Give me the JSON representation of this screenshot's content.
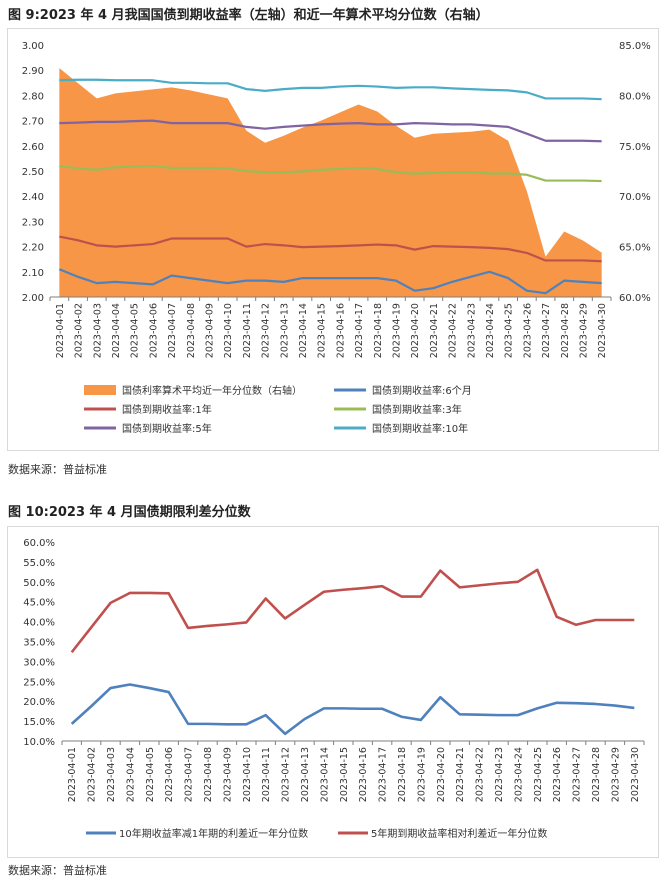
{
  "figure1": {
    "title": "图 9:2023 年 4 月我国国债到期收益率（左轴）和近一年算术平均分位数（右轴）",
    "source": "数据来源：普益标准"
  },
  "figure2": {
    "title": "图 10:2023 年 4 月国债期限利差分位数",
    "source": "数据来源：普益标准"
  },
  "chart_data": [
    {
      "type": "line",
      "title": "",
      "x": [
        "2023-04-01",
        "2023-04-02",
        "2023-04-03",
        "2023-04-04",
        "2023-04-05",
        "2023-04-06",
        "2023-04-07",
        "2023-04-08",
        "2023-04-09",
        "2023-04-10",
        "2023-04-11",
        "2023-04-12",
        "2023-04-13",
        "2023-04-14",
        "2023-04-15",
        "2023-04-16",
        "2023-04-17",
        "2023-04-18",
        "2023-04-19",
        "2023-04-20",
        "2023-04-21",
        "2023-04-22",
        "2023-04-23",
        "2023-04-24",
        "2023-04-25",
        "2023-04-26",
        "2023-04-27",
        "2023-04-28",
        "2023-04-29",
        "2023-04-30"
      ],
      "y_left": {
        "ylim": [
          2.0,
          3.0
        ],
        "ticks": [
          "2.00",
          "2.10",
          "2.20",
          "2.30",
          "2.40",
          "2.50",
          "2.60",
          "2.70",
          "2.80",
          "2.90",
          "3.00"
        ]
      },
      "y_right": {
        "ylim": [
          60,
          85
        ],
        "ticks": [
          "60.0%",
          "65.0%",
          "70.0%",
          "75.0%",
          "80.0%",
          "85.0%"
        ]
      },
      "grid": false,
      "legend_position": "bottom",
      "series": [
        {
          "name": "国债利率算术平均近一年分位数（右轴）",
          "kind": "area",
          "axis": "right",
          "color": "#F79646",
          "values": [
            82.7,
            81.2,
            79.7,
            80.2,
            80.4,
            80.6,
            80.8,
            80.5,
            80.1,
            79.7,
            76.5,
            75.3,
            76.0,
            76.8,
            77.5,
            78.3,
            79.1,
            78.4,
            77.0,
            75.8,
            76.2,
            76.3,
            76.4,
            76.6,
            75.5,
            70.5,
            64.0,
            66.5,
            65.6,
            64.4
          ]
        },
        {
          "name": "国债到期收益率:6个月",
          "kind": "line",
          "axis": "left",
          "color": "#4F81BD",
          "values": [
            2.11,
            2.08,
            2.055,
            2.06,
            2.055,
            2.05,
            2.085,
            2.075,
            2.065,
            2.055,
            2.065,
            2.065,
            2.06,
            2.075,
            2.075,
            2.075,
            2.075,
            2.075,
            2.065,
            2.025,
            2.035,
            2.06,
            2.08,
            2.1,
            2.075,
            2.025,
            2.015,
            2.065,
            2.06,
            2.055
          ]
        },
        {
          "name": "国债到期收益率:1年",
          "kind": "line",
          "axis": "left",
          "color": "#C0504D",
          "values": [
            2.24,
            2.225,
            2.205,
            2.2,
            2.205,
            2.21,
            2.232,
            2.232,
            2.232,
            2.232,
            2.2,
            2.21,
            2.205,
            2.198,
            2.2,
            2.202,
            2.205,
            2.208,
            2.205,
            2.188,
            2.202,
            2.2,
            2.198,
            2.195,
            2.19,
            2.175,
            2.145,
            2.145,
            2.145,
            2.142
          ]
        },
        {
          "name": "国债到期收益率:3年",
          "kind": "line",
          "axis": "left",
          "color": "#9BBB59",
          "values": [
            2.52,
            2.51,
            2.505,
            2.515,
            2.518,
            2.52,
            2.512,
            2.512,
            2.512,
            2.51,
            2.5,
            2.495,
            2.495,
            2.498,
            2.505,
            2.508,
            2.512,
            2.508,
            2.495,
            2.49,
            2.492,
            2.495,
            2.495,
            2.49,
            2.49,
            2.485,
            2.462,
            2.462,
            2.462,
            2.46
          ]
        },
        {
          "name": "国债到期收益率:5年",
          "kind": "line",
          "axis": "left",
          "color": "#8064A2",
          "values": [
            2.69,
            2.692,
            2.695,
            2.695,
            2.698,
            2.7,
            2.69,
            2.69,
            2.69,
            2.69,
            2.675,
            2.668,
            2.675,
            2.68,
            2.685,
            2.688,
            2.69,
            2.685,
            2.685,
            2.69,
            2.688,
            2.685,
            2.685,
            2.68,
            2.675,
            2.648,
            2.62,
            2.62,
            2.62,
            2.618
          ]
        },
        {
          "name": "国债到期收益率:10年",
          "kind": "line",
          "axis": "left",
          "color": "#4BACC6",
          "values": [
            2.86,
            2.862,
            2.862,
            2.86,
            2.86,
            2.86,
            2.85,
            2.85,
            2.848,
            2.848,
            2.825,
            2.818,
            2.825,
            2.83,
            2.83,
            2.835,
            2.838,
            2.835,
            2.83,
            2.832,
            2.832,
            2.828,
            2.825,
            2.822,
            2.82,
            2.812,
            2.788,
            2.788,
            2.788,
            2.785
          ]
        }
      ]
    },
    {
      "type": "line",
      "title": "",
      "x": [
        "2023-04-01",
        "2023-04-02",
        "2023-04-03",
        "2023-04-04",
        "2023-04-05",
        "2023-04-06",
        "2023-04-07",
        "2023-04-08",
        "2023-04-09",
        "2023-04-10",
        "2023-04-11",
        "2023-04-12",
        "2023-04-13",
        "2023-04-14",
        "2023-04-15",
        "2023-04-16",
        "2023-04-17",
        "2023-04-18",
        "2023-04-19",
        "2023-04-20",
        "2023-04-21",
        "2023-04-22",
        "2023-04-23",
        "2023-04-24",
        "2023-04-25",
        "2023-04-26",
        "2023-04-27",
        "2023-04-28",
        "2023-04-29",
        "2023-04-30"
      ],
      "ylim": [
        10,
        60
      ],
      "yticks": [
        "10.0%",
        "15.0%",
        "20.0%",
        "25.0%",
        "30.0%",
        "35.0%",
        "40.0%",
        "45.0%",
        "50.0%",
        "55.0%",
        "60.0%"
      ],
      "grid": false,
      "legend_position": "bottom",
      "series": [
        {
          "name": "10年期收益率减1年期的利差近一年分位数",
          "color": "#4F81BD",
          "values": [
            14.3,
            18.7,
            23.3,
            24.2,
            23.3,
            22.3,
            14.3,
            14.3,
            14.2,
            14.2,
            16.5,
            11.8,
            15.5,
            18.2,
            18.2,
            18.1,
            18.1,
            16.1,
            15.3,
            21.0,
            16.7,
            16.6,
            16.5,
            16.5,
            18.2,
            19.6,
            19.5,
            19.3,
            18.9,
            18.3
          ]
        },
        {
          "name": "5年期到期收益率相对利差近一年分位数",
          "color": "#C0504D",
          "values": [
            32.3,
            38.5,
            44.7,
            47.2,
            47.2,
            47.1,
            38.4,
            38.9,
            39.3,
            39.8,
            45.8,
            40.8,
            44.2,
            47.5,
            48.0,
            48.4,
            48.9,
            46.3,
            46.3,
            52.8,
            48.6,
            49.1,
            49.6,
            50.0,
            53.0,
            41.2,
            39.2,
            40.4,
            40.4,
            40.4
          ]
        }
      ]
    }
  ]
}
